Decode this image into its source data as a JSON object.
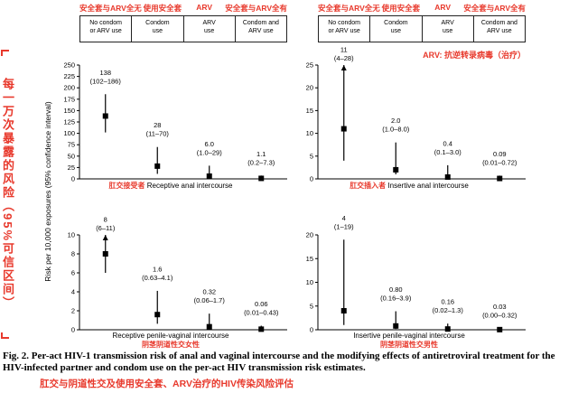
{
  "accent_red": "#e8392c",
  "left_axis": {
    "cn": "每一万次暴露的风险（95%可信区间）",
    "en": "Risk per 10,000 exposures (95% confidence interval)"
  },
  "arv_note": "ARV: 抗逆转录病毒（治疗）",
  "columns_cn": [
    "安全套与ARV全无",
    "使用安全套",
    "ARV",
    "安全套与ARV全有"
  ],
  "columns": [
    "No condom\nor ARV use",
    "Condom\nuse",
    "ARV\nuse",
    "Condom and\nARV use"
  ],
  "caption": {
    "en": "Fig. 2. Per-act HIV-1 transmission risk of anal and vaginal intercourse and the modifying effects of antiretroviral treatment for the HIV-infected partner and condom use on the per-act HIV transmission risk estimates.",
    "cn": "肛交与阴道性交及使用安全套、ARV治疗的HIV传染风险评估"
  },
  "chart_data": [
    {
      "type": "scatter",
      "error_bars": true,
      "title": "Receptive anal intercourse",
      "title_cn": "肛交接受者",
      "categories": [
        "No condom or ARV use",
        "Condom use",
        "ARV use",
        "Condom and ARV use"
      ],
      "ylabel": "Risk per 10,000 exposures (95% confidence interval)",
      "ylim": [
        0,
        250
      ],
      "yticks": [
        0,
        25,
        50,
        75,
        100,
        125,
        150,
        175,
        200,
        225,
        250
      ],
      "points": [
        {
          "value": 138,
          "ci": [
            102,
            186
          ],
          "label": "138",
          "ci_label": "(102–186)"
        },
        {
          "value": 28,
          "ci": [
            11,
            70
          ],
          "label": "28",
          "ci_label": "(11–70)"
        },
        {
          "value": 6.0,
          "ci": [
            1.0,
            29
          ],
          "label": "6.0",
          "ci_label": "(1.0–29)"
        },
        {
          "value": 1.1,
          "ci": [
            0.2,
            7.3
          ],
          "label": "1.1",
          "ci_label": "(0.2–7.3)"
        }
      ]
    },
    {
      "type": "scatter",
      "error_bars": true,
      "title": "Insertive anal intercourse",
      "title_cn": "肛交插入者",
      "categories": [
        "No condom or ARV use",
        "Condom use",
        "ARV use",
        "Condom and ARV use"
      ],
      "ylabel": "Risk per 10,000 exposures (95% confidence interval)",
      "ylim": [
        0,
        25
      ],
      "yticks": [
        0,
        5,
        10,
        15,
        20,
        25
      ],
      "points": [
        {
          "value": 11,
          "ci": [
            4,
            28
          ],
          "label": "11",
          "ci_label": "(4–28)"
        },
        {
          "value": 2.0,
          "ci": [
            1.0,
            8.0
          ],
          "label": "2.0",
          "ci_label": "(1.0–8.0)"
        },
        {
          "value": 0.4,
          "ci": [
            0.1,
            3.0
          ],
          "label": "0.4",
          "ci_label": "(0.1–3.0)"
        },
        {
          "value": 0.09,
          "ci": [
            0.01,
            0.72
          ],
          "label": "0.09",
          "ci_label": "(0.01–0.72)"
        }
      ]
    },
    {
      "type": "scatter",
      "error_bars": true,
      "title": "Receptive penile-vaginal intercourse",
      "title_cn": "阴茎阴道性交女性",
      "categories": [
        "No condom or ARV use",
        "Condom use",
        "ARV use",
        "Condom and ARV use"
      ],
      "ylabel": "Risk per 10,000 exposures (95% confidence interval)",
      "ylim": [
        0,
        10
      ],
      "yticks": [
        0,
        2,
        4,
        6,
        8,
        10
      ],
      "points": [
        {
          "value": 8,
          "ci": [
            6,
            11
          ],
          "label": "8",
          "ci_label": "(6–11)"
        },
        {
          "value": 1.6,
          "ci": [
            0.63,
            4.1
          ],
          "label": "1.6",
          "ci_label": "(0.63–4.1)"
        },
        {
          "value": 0.32,
          "ci": [
            0.06,
            1.7
          ],
          "label": "0.32",
          "ci_label": "(0.06–1.7)"
        },
        {
          "value": 0.06,
          "ci": [
            0.01,
            0.43
          ],
          "label": "0.06",
          "ci_label": "(0.01–0.43)"
        }
      ]
    },
    {
      "type": "scatter",
      "error_bars": true,
      "title": "Insertive penile-vaginal intercourse",
      "title_cn": "阴茎阴道性交男性",
      "categories": [
        "No condom or ARV use",
        "Condom use",
        "ARV use",
        "Condom and ARV use"
      ],
      "ylabel": "Risk per 10,000 exposures (95% confidence interval)",
      "ylim": [
        0,
        20
      ],
      "yticks": [
        0,
        5,
        10,
        15,
        20
      ],
      "points": [
        {
          "value": 4,
          "ci": [
            1,
            19
          ],
          "label": "4",
          "ci_label": "(1–19)"
        },
        {
          "value": 0.8,
          "ci": [
            0.16,
            3.9
          ],
          "label": "0.80",
          "ci_label": "(0.16–3.9)"
        },
        {
          "value": 0.16,
          "ci": [
            0.02,
            1.3
          ],
          "label": "0.16",
          "ci_label": "(0.02–1.3)"
        },
        {
          "value": 0.03,
          "ci": [
            0.0,
            0.32
          ],
          "label": "0.03",
          "ci_label": "(0.00–0.32)"
        }
      ]
    }
  ]
}
